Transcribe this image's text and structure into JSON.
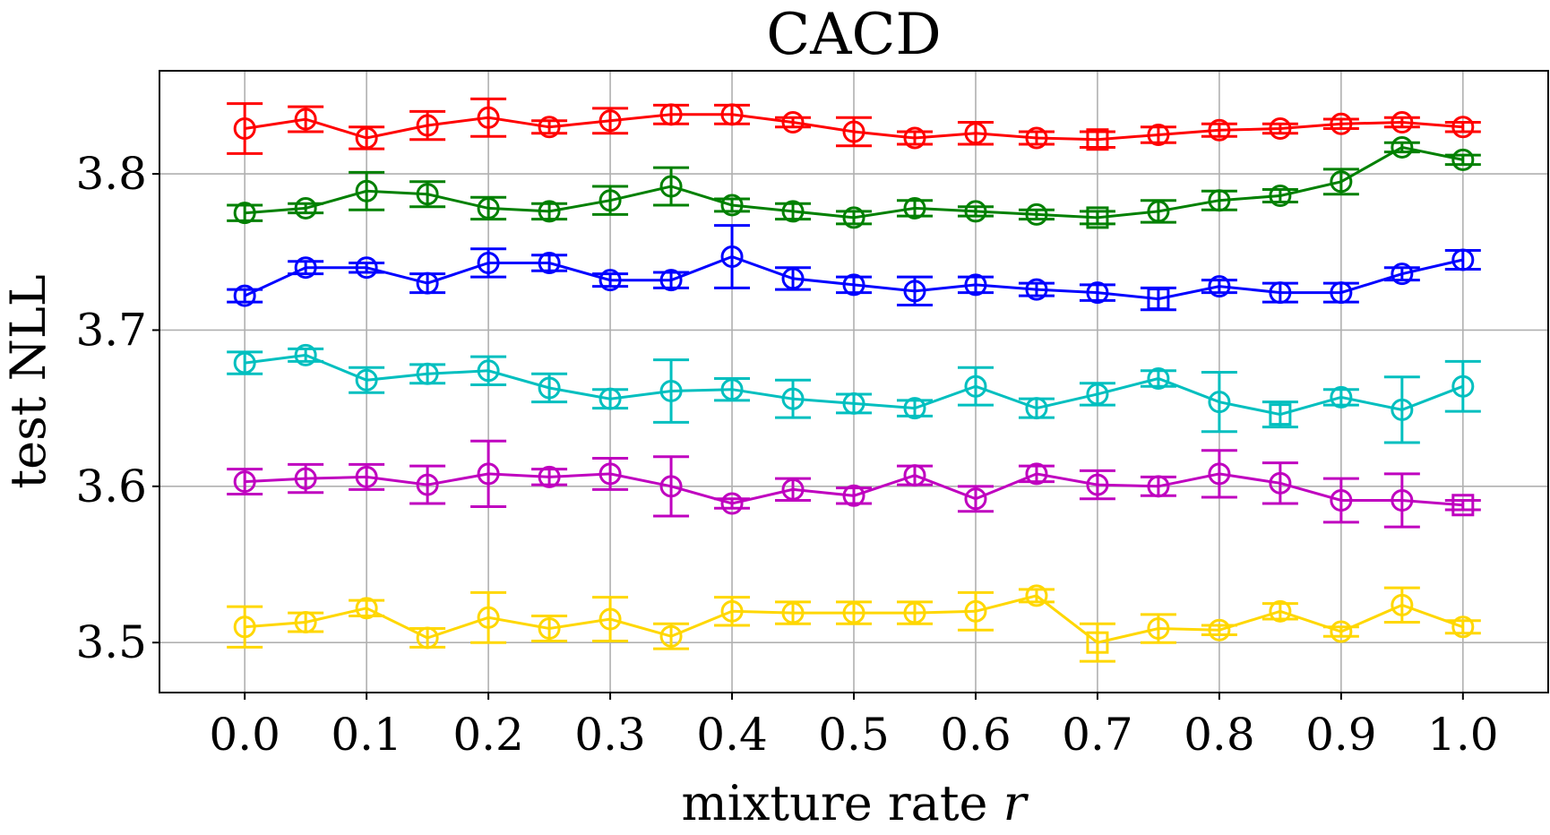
{
  "chart_data": {
    "type": "line",
    "title": "CACD",
    "xlabel": "mixture rate",
    "xlabel_var": "r",
    "ylabel": "test NLL",
    "xlim": [
      -0.07,
      1.07
    ],
    "ylim": [
      3.468,
      3.866
    ],
    "xticks": [
      0.0,
      0.1,
      0.2,
      0.3,
      0.4,
      0.5,
      0.6,
      0.7,
      0.8,
      0.9,
      1.0
    ],
    "xtick_labels": [
      "0.0",
      "0.1",
      "0.2",
      "0.3",
      "0.4",
      "0.5",
      "0.6",
      "0.7",
      "0.8",
      "0.9",
      "1.0"
    ],
    "yticks": [
      3.5,
      3.6,
      3.7,
      3.8
    ],
    "ytick_labels": [
      "3.5",
      "3.6",
      "3.7",
      "3.8"
    ],
    "grid": true,
    "x": [
      0.0,
      0.05,
      0.1,
      0.15,
      0.2,
      0.25,
      0.3,
      0.35,
      0.4,
      0.45,
      0.5,
      0.55,
      0.6,
      0.65,
      0.7,
      0.75,
      0.8,
      0.85,
      0.9,
      0.95,
      1.0
    ],
    "series": [
      {
        "name": "red",
        "color": "#ff0000",
        "values": [
          3.829,
          3.835,
          3.823,
          3.831,
          3.836,
          3.83,
          3.834,
          3.838,
          3.838,
          3.833,
          3.827,
          3.823,
          3.826,
          3.823,
          3.822,
          3.825,
          3.828,
          3.829,
          3.832,
          3.833,
          3.83
        ],
        "err": [
          0.016,
          0.008,
          0.007,
          0.009,
          0.012,
          0.004,
          0.008,
          0.006,
          0.006,
          0.003,
          0.009,
          0.004,
          0.007,
          0.004,
          0.005,
          0.005,
          0.004,
          0.003,
          0.003,
          0.003,
          0.003
        ],
        "markers": [
          "o",
          "o",
          "o",
          "o",
          "o",
          "o",
          "o",
          "o",
          "o",
          "o",
          "o",
          "o",
          "o",
          "o",
          "s",
          "o",
          "o",
          "o",
          "o",
          "o",
          "o"
        ]
      },
      {
        "name": "green",
        "color": "#008000",
        "values": [
          3.775,
          3.778,
          3.789,
          3.787,
          3.778,
          3.776,
          3.783,
          3.792,
          3.78,
          3.776,
          3.772,
          3.778,
          3.776,
          3.774,
          3.772,
          3.776,
          3.783,
          3.786,
          3.795,
          3.817,
          3.809
        ],
        "err": [
          0.005,
          0.003,
          0.012,
          0.008,
          0.007,
          0.005,
          0.009,
          0.012,
          0.004,
          0.005,
          0.004,
          0.005,
          0.003,
          0.003,
          0.004,
          0.007,
          0.006,
          0.004,
          0.008,
          0.003,
          0.003
        ],
        "markers": [
          "o",
          "o",
          "o",
          "o",
          "o",
          "o",
          "o",
          "o",
          "o",
          "o",
          "o",
          "o",
          "o",
          "o",
          "s",
          "o",
          "o",
          "o",
          "o",
          "o",
          "o"
        ]
      },
      {
        "name": "blue",
        "color": "#0000ff",
        "values": [
          3.722,
          3.74,
          3.74,
          3.73,
          3.743,
          3.743,
          3.732,
          3.732,
          3.747,
          3.733,
          3.729,
          3.725,
          3.729,
          3.726,
          3.724,
          3.72,
          3.728,
          3.724,
          3.724,
          3.736,
          3.745
        ],
        "err": [
          0.004,
          0.004,
          0.003,
          0.006,
          0.009,
          0.005,
          0.004,
          0.005,
          0.02,
          0.007,
          0.005,
          0.009,
          0.005,
          0.004,
          0.005,
          0.007,
          0.004,
          0.006,
          0.006,
          0.004,
          0.006
        ],
        "markers": [
          "o",
          "o",
          "o",
          "o",
          "o",
          "o",
          "o",
          "o",
          "o",
          "o",
          "o",
          "o",
          "o",
          "o",
          "o",
          "s",
          "o",
          "o",
          "o",
          "o",
          "o"
        ]
      },
      {
        "name": "cyan",
        "color": "#00bfbf",
        "values": [
          3.679,
          3.684,
          3.668,
          3.672,
          3.674,
          3.663,
          3.656,
          3.661,
          3.662,
          3.656,
          3.653,
          3.65,
          3.664,
          3.65,
          3.659,
          3.669,
          3.654,
          3.646,
          3.657,
          3.649,
          3.664
        ],
        "err": [
          0.007,
          0.004,
          0.008,
          0.006,
          0.009,
          0.009,
          0.006,
          0.02,
          0.007,
          0.012,
          0.006,
          0.005,
          0.012,
          0.006,
          0.007,
          0.005,
          0.019,
          0.008,
          0.005,
          0.021,
          0.016
        ],
        "markers": [
          "o",
          "o",
          "o",
          "o",
          "o",
          "o",
          "o",
          "o",
          "o",
          "o",
          "o",
          "o",
          "o",
          "o",
          "o",
          "o",
          "o",
          "s",
          "o",
          "o",
          "o"
        ]
      },
      {
        "name": "magenta",
        "color": "#bf00bf",
        "values": [
          3.603,
          3.605,
          3.606,
          3.601,
          3.608,
          3.606,
          3.608,
          3.6,
          3.589,
          3.598,
          3.594,
          3.607,
          3.592,
          3.608,
          3.601,
          3.6,
          3.608,
          3.602,
          3.591,
          3.591,
          3.588
        ],
        "err": [
          0.008,
          0.009,
          0.008,
          0.012,
          0.021,
          0.005,
          0.01,
          0.019,
          0.003,
          0.007,
          0.005,
          0.006,
          0.008,
          0.005,
          0.009,
          0.006,
          0.015,
          0.013,
          0.014,
          0.017,
          0.003
        ],
        "markers": [
          "o",
          "o",
          "o",
          "o",
          "o",
          "o",
          "o",
          "o",
          "o",
          "o",
          "o",
          "o",
          "o",
          "o",
          "o",
          "o",
          "o",
          "o",
          "o",
          "o",
          "s"
        ]
      },
      {
        "name": "gold",
        "color": "#ffd700",
        "values": [
          3.51,
          3.513,
          3.522,
          3.503,
          3.516,
          3.509,
          3.515,
          3.504,
          3.52,
          3.519,
          3.519,
          3.519,
          3.52,
          3.53,
          3.5,
          3.509,
          3.508,
          3.52,
          3.507,
          3.524,
          3.51
        ],
        "err": [
          0.013,
          0.006,
          0.005,
          0.006,
          0.016,
          0.008,
          0.014,
          0.008,
          0.009,
          0.007,
          0.007,
          0.007,
          0.012,
          0.004,
          0.012,
          0.009,
          0.003,
          0.005,
          0.003,
          0.011,
          0.004
        ],
        "markers": [
          "o",
          "o",
          "o",
          "o",
          "o",
          "o",
          "o",
          "o",
          "o",
          "o",
          "o",
          "o",
          "o",
          "o",
          "s",
          "o",
          "o",
          "o",
          "o",
          "o",
          "o"
        ]
      }
    ]
  }
}
